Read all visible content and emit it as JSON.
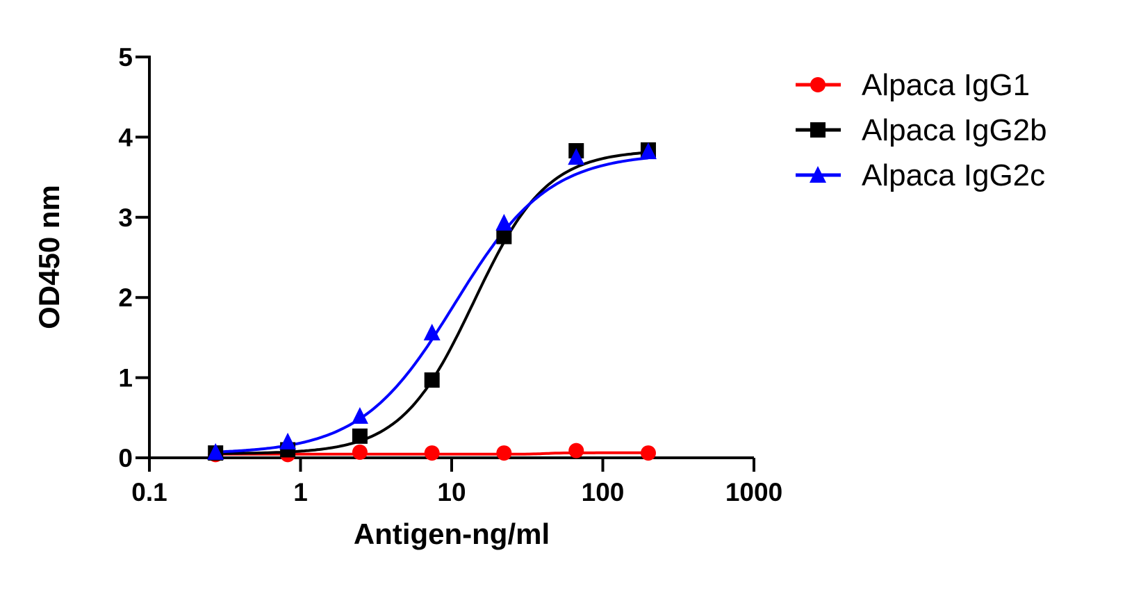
{
  "chart_data": {
    "type": "line",
    "xlabel": "Antigen-ng/ml",
    "ylabel": "OD450 nm",
    "xscale": "log",
    "xlim": [
      0.1,
      1000
    ],
    "ylim": [
      0,
      5
    ],
    "xticks": [
      "0.1",
      "1",
      "10",
      "100",
      "1000"
    ],
    "yticks": [
      "0",
      "1",
      "2",
      "3",
      "4",
      "5"
    ],
    "grid": false,
    "legend_position": "top-right",
    "x": [
      0.274,
      0.823,
      2.47,
      7.41,
      22.2,
      66.7,
      200
    ],
    "series": [
      {
        "name": "Alpaca IgG1",
        "color": "#ff0000",
        "marker": "circle",
        "values": [
          0.04,
          0.04,
          0.07,
          0.06,
          0.06,
          0.09,
          0.06
        ]
      },
      {
        "name": "Alpaca IgG2b",
        "color": "#000000",
        "marker": "square",
        "values": [
          0.06,
          0.1,
          0.27,
          0.97,
          2.76,
          3.83,
          3.84
        ]
      },
      {
        "name": "Alpaca IgG2c",
        "color": "#0000ff",
        "marker": "triangle",
        "values": [
          0.07,
          0.2,
          0.52,
          1.56,
          2.93,
          3.75,
          3.82
        ]
      }
    ]
  }
}
